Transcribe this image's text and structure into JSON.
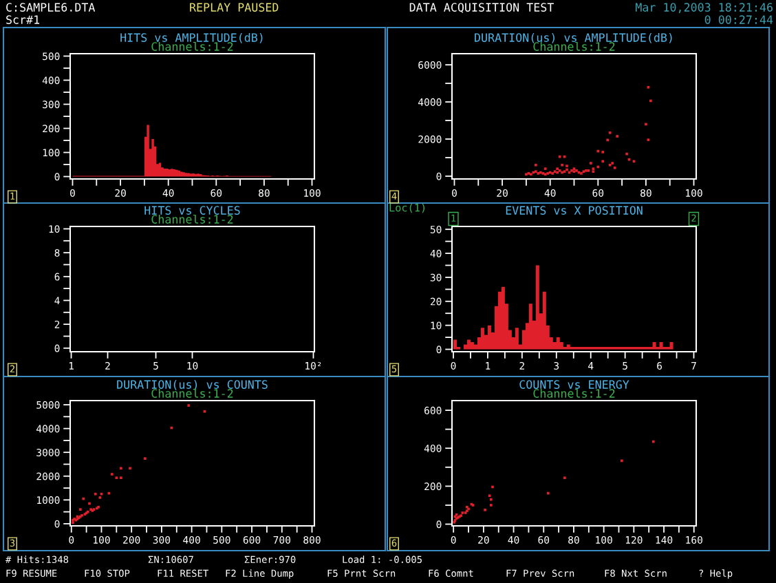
{
  "chart_data": [
    {
      "type": "other",
      "title": "DATA ACQUISITION TEST",
      "annotations": [
        "C:SAMPLE6.DTA",
        "Scr#1",
        "REPLAY PAUSED",
        "Mar 10,2003 18:21:46",
        "0 00:27:44",
        "# Hits:1348",
        "ΣN:10607",
        "ΣEner:970",
        "Load 1: -0.005",
        "F9 RESUME",
        "F10 STOP",
        "F11 RESET",
        "F2 Line Dump",
        "F5 Prnt Scrn",
        "F6 Comnt",
        "F7 Prev Scrn",
        "F8 Nxt Scrn",
        "? Help"
      ]
    },
    {
      "type": "histogram",
      "title": "HITS vs AMPLITUDE(dB)",
      "subtitle": "Channels:1-2",
      "annotations": [
        "1"
      ],
      "color": "#e0202a",
      "bins": [
        0,
        1,
        2,
        3,
        4,
        5,
        6,
        7,
        8,
        9,
        10,
        11,
        12,
        13,
        14,
        15,
        16,
        17,
        18,
        19,
        20,
        21,
        22,
        23,
        24,
        25,
        26,
        27,
        28,
        29,
        30,
        31,
        32,
        33,
        34,
        35,
        36,
        37,
        38,
        39,
        40,
        41,
        42,
        43,
        44,
        45,
        46,
        47,
        48,
        49,
        50,
        51,
        52,
        53,
        54,
        55,
        56,
        57,
        58,
        59,
        60,
        61,
        62,
        63,
        64,
        65,
        66,
        67,
        68,
        69,
        70,
        71,
        72,
        73,
        74,
        75,
        76,
        77,
        78,
        79,
        80,
        81,
        82,
        83
      ],
      "values": [
        3,
        3,
        3,
        3,
        3,
        3,
        3,
        3,
        3,
        3,
        3,
        3,
        3,
        3,
        3,
        3,
        3,
        3,
        3,
        3,
        3,
        3,
        3,
        3,
        3,
        3,
        3,
        3,
        3,
        3,
        165,
        214,
        115,
        156,
        125,
        52,
        57,
        38,
        33,
        33,
        30,
        32,
        30,
        28,
        25,
        20,
        18,
        15,
        14,
        12,
        13,
        11,
        12,
        10,
        6,
        5,
        4,
        3,
        4,
        3,
        4,
        3,
        2,
        3,
        4,
        2,
        2,
        2,
        2,
        2,
        2,
        2,
        2,
        2,
        2,
        2,
        2,
        2,
        2,
        2,
        2,
        2,
        2
      ],
      "xlim": [
        -1,
        101
      ],
      "ylim": [
        -10,
        510
      ],
      "xticks": [
        0,
        {
          "value": 10,
          "label": null
        },
        20,
        {
          "value": 30,
          "label": null
        },
        40,
        {
          "value": 50,
          "label": null
        },
        60,
        {
          "value": 70,
          "label": null
        },
        80,
        {
          "value": 90,
          "label": null
        },
        100
      ],
      "yticks": [
        0,
        {
          "value": 50,
          "label": null
        },
        100,
        {
          "value": 150,
          "label": null
        },
        200,
        {
          "value": 250,
          "label": null
        },
        300,
        {
          "value": 350,
          "label": null
        },
        400,
        {
          "value": 450,
          "label": null
        },
        500
      ]
    },
    {
      "type": "scatter",
      "title": "DURATION(us) vs AMPLITUDE(dB)",
      "subtitle": "Channels:1-2",
      "annotations": [
        "4"
      ],
      "color": "#e0202a",
      "marker": "square",
      "x": [
        81,
        82,
        80,
        81,
        65,
        68,
        64,
        60,
        62,
        72,
        73,
        75,
        66,
        65,
        67,
        60,
        58,
        62,
        57,
        55,
        44,
        46,
        45,
        47,
        43,
        30,
        31,
        32,
        33,
        34,
        35,
        36,
        37,
        38,
        39,
        40,
        41,
        42,
        43,
        44,
        45,
        46,
        47,
        48,
        49,
        50,
        51,
        52,
        53,
        54,
        56,
        58,
        34,
        38,
        50
      ],
      "values": [
        4790,
        4060,
        2800,
        1960,
        2340,
        2150,
        1950,
        1350,
        1300,
        1200,
        900,
        800,
        700,
        600,
        450,
        500,
        400,
        800,
        700,
        300,
        1050,
        1050,
        600,
        550,
        400,
        100,
        150,
        100,
        200,
        250,
        150,
        200,
        150,
        100,
        150,
        200,
        150,
        250,
        200,
        300,
        200,
        250,
        350,
        200,
        300,
        250,
        300,
        200,
        150,
        250,
        300,
        250,
        600,
        400,
        400
      ],
      "xlim": [
        -1,
        101
      ],
      "ylim": [
        -150,
        6600
      ],
      "xticks": [
        0,
        {
          "value": 10,
          "label": null
        },
        20,
        {
          "value": 30,
          "label": null
        },
        40,
        {
          "value": 50,
          "label": null
        },
        60,
        {
          "value": 70,
          "label": null
        },
        80,
        {
          "value": 90,
          "label": null
        },
        100
      ],
      "yticks": [
        0,
        {
          "value": 1000,
          "label": null
        },
        2000,
        {
          "value": 3000,
          "label": null
        },
        4000,
        {
          "value": 5000,
          "label": null
        },
        6000
      ]
    },
    {
      "type": "scatter",
      "title": "HITS vs CYCLES",
      "subtitle": "Channels:1-2",
      "annotations": [
        "2"
      ],
      "color": "#e0202a",
      "marker": "square",
      "log": "x",
      "xlim": [
        0.98,
        102
      ],
      "ylim": [
        -0.3,
        10.2
      ],
      "xticks": [
        1,
        2,
        5,
        10,
        {
          "value": 100,
          "label": "10²"
        }
      ],
      "yticks": [
        0,
        {
          "value": 1,
          "label": null
        },
        2,
        {
          "value": 3,
          "label": null
        },
        4,
        {
          "value": 5,
          "label": null
        },
        6,
        {
          "value": 7,
          "label": null
        },
        8,
        {
          "value": 9,
          "label": null
        },
        10
      ]
    },
    {
      "type": "histogram",
      "title": "EVENTS vs X POSITION",
      "annotations": [
        "5",
        "Loc(1)",
        {
          "text": "1",
          "x": 0
        },
        {
          "text": "2",
          "x": 7
        }
      ],
      "color": "#e0202a",
      "bins": [
        0,
        0.1,
        0.2,
        0.3,
        0.4,
        0.5,
        0.6,
        0.7,
        0.8,
        0.9,
        1.0,
        1.1,
        1.2,
        1.3,
        1.4,
        1.5,
        1.6,
        1.7,
        1.8,
        1.9,
        2.0,
        2.1,
        2.2,
        2.3,
        2.4,
        2.5,
        2.6,
        2.7,
        2.8,
        2.9,
        3.0,
        3.1,
        3.2,
        3.3,
        3.4,
        3.5,
        3.6,
        3.7,
        3.8,
        3.9,
        4.0,
        4.1,
        4.2,
        4.3,
        4.4,
        4.5,
        4.6,
        4.7,
        4.8,
        4.9,
        5.0,
        5.1,
        5.2,
        5.3,
        5.4,
        5.5,
        5.6,
        5.7,
        5.8,
        5.9,
        6.0,
        6.1,
        6.2,
        6.3,
        6.4
      ],
      "values": [
        4,
        1,
        0,
        2,
        4,
        3,
        2,
        5,
        9,
        6,
        10,
        7,
        18,
        24,
        26,
        19,
        8,
        5,
        9,
        2,
        8,
        11,
        19,
        12,
        35,
        15,
        24,
        10,
        5,
        3,
        5,
        3,
        1,
        2,
        1,
        1,
        1,
        1,
        1,
        1,
        1,
        1,
        1,
        1,
        1,
        1,
        1,
        1,
        1,
        1,
        1,
        1,
        1,
        1,
        1,
        1,
        1,
        1,
        3,
        1,
        3,
        1,
        1,
        3
      ],
      "xlim": [
        -0.04,
        7.07
      ],
      "ylim": [
        -1,
        51.2
      ],
      "xticks": [
        0,
        {
          "value": 0.5,
          "label": null
        },
        1,
        {
          "value": 1.5,
          "label": null
        },
        2,
        {
          "value": 2.5,
          "label": null
        },
        3,
        {
          "value": 3.5,
          "label": null
        },
        4,
        {
          "value": 4.5,
          "label": null
        },
        5,
        {
          "value": 5.5,
          "label": null
        },
        6,
        {
          "value": 6.5,
          "label": null
        },
        7
      ],
      "yticks": [
        0,
        {
          "value": 5,
          "label": null
        },
        10,
        {
          "value": 15,
          "label": null
        },
        20,
        {
          "value": 25,
          "label": null
        },
        30,
        {
          "value": 35,
          "label": null
        },
        40,
        {
          "value": 45,
          "label": null
        },
        50
      ]
    },
    {
      "type": "scatter",
      "title": "DURATION(us) vs COUNTS",
      "subtitle": "Channels:1-2",
      "annotations": [
        "3"
      ],
      "color": "#e0202a",
      "marker": "square",
      "x": [
        390,
        443,
        333,
        245,
        165,
        195,
        135,
        150,
        165,
        125,
        100,
        80,
        95,
        40,
        60,
        30,
        5,
        15,
        20,
        25,
        30,
        45,
        50,
        70,
        75,
        90,
        20,
        35,
        55,
        65,
        10,
        5,
        85
      ],
      "values": [
        4970,
        4720,
        4030,
        2740,
        2330,
        2330,
        2080,
        1930,
        1930,
        1280,
        1250,
        1250,
        1100,
        1050,
        850,
        600,
        50,
        150,
        200,
        250,
        300,
        400,
        450,
        550,
        600,
        700,
        300,
        350,
        500,
        600,
        200,
        150,
        650
      ],
      "xlim": [
        -4,
        808
      ],
      "ylim": [
        -90,
        5175
      ],
      "xticks": [
        0,
        {
          "value": 50,
          "label": null
        },
        100,
        {
          "value": 150,
          "label": null
        },
        200,
        {
          "value": 250,
          "label": null
        },
        300,
        {
          "value": 350,
          "label": null
        },
        400,
        {
          "value": 450,
          "label": null
        },
        500,
        {
          "value": 550,
          "label": null
        },
        600,
        {
          "value": 650,
          "label": null
        },
        700,
        {
          "value": 750,
          "label": null
        },
        800
      ],
      "yticks": [
        0,
        {
          "value": 500,
          "label": null
        },
        1000,
        {
          "value": 1500,
          "label": null
        },
        2000,
        {
          "value": 2500,
          "label": null
        },
        3000,
        {
          "value": 3500,
          "label": null
        },
        4000,
        {
          "value": 4500,
          "label": null
        },
        5000
      ]
    },
    {
      "type": "scatter",
      "title": "COUNTS vs ENERGY",
      "subtitle": "Channels:1-2",
      "annotations": [
        "6"
      ],
      "color": "#e0202a",
      "marker": "square",
      "x": [
        133,
        112,
        74,
        63,
        26,
        25,
        24,
        21,
        25,
        13,
        12,
        10,
        9,
        8,
        5,
        4,
        3,
        2,
        1,
        0.5,
        2,
        1,
        6,
        9
      ],
      "values": [
        435,
        334,
        244,
        163,
        196,
        130,
        150,
        75,
        100,
        100,
        105,
        80,
        70,
        60,
        45,
        40,
        35,
        30,
        20,
        10,
        50,
        40,
        60,
        90
      ],
      "xlim": [
        -1,
        161.5
      ],
      "ylim": [
        -9,
        651
      ],
      "xticks": [
        0,
        {
          "value": 10,
          "label": null
        },
        20,
        {
          "value": 30,
          "label": null
        },
        40,
        {
          "value": 50,
          "label": null
        },
        60,
        {
          "value": 70,
          "label": null
        },
        80,
        {
          "value": 90,
          "label": null
        },
        100,
        {
          "value": 110,
          "label": null
        },
        120,
        {
          "value": 130,
          "label": null
        },
        140,
        {
          "value": 150,
          "label": null
        },
        160
      ],
      "yticks": [
        0,
        {
          "value": 100,
          "label": null
        },
        200,
        {
          "value": 300,
          "label": null
        },
        400,
        {
          "value": 500,
          "label": null
        },
        600
      ]
    }
  ]
}
